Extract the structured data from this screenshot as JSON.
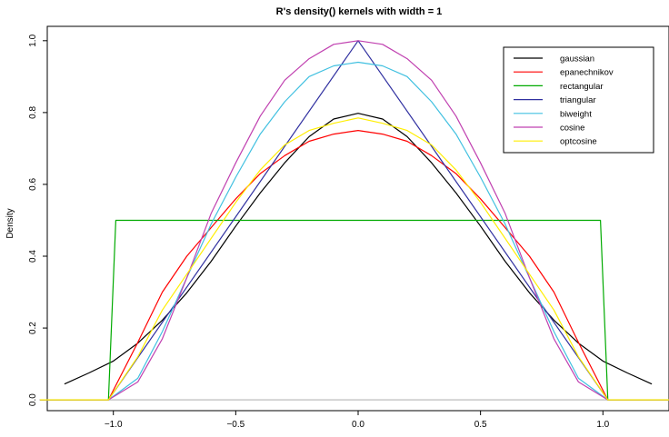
{
  "chart_data": {
    "type": "line",
    "title": "R's density() kernels with width = 1",
    "xlabel": "",
    "ylabel": "Density",
    "xlim": [
      -1.27,
      1.27
    ],
    "ylim": [
      -0.03,
      1.04
    ],
    "x_ticks": [
      {
        "value": -1.0,
        "label": "−1.0"
      },
      {
        "value": -0.5,
        "label": "−0.5"
      },
      {
        "value": 0.0,
        "label": "0.0"
      },
      {
        "value": 0.5,
        "label": "0.5"
      },
      {
        "value": 1.0,
        "label": "1.0"
      }
    ],
    "y_ticks": [
      {
        "value": 0.0,
        "label": "0.0"
      },
      {
        "value": 0.2,
        "label": "0.2"
      },
      {
        "value": 0.4,
        "label": "0.4"
      },
      {
        "value": 0.6,
        "label": "0.6"
      },
      {
        "value": 0.8,
        "label": "0.8"
      },
      {
        "value": 1.0,
        "label": "1.0"
      }
    ],
    "baseline": {
      "y": 0,
      "color": "#c8c8c8"
    },
    "legend_position": "top-right",
    "grid": false,
    "series": [
      {
        "name": "gaussian",
        "color": "#000000",
        "x": [
          -1.2,
          -1.1,
          -1.0,
          -0.9,
          -0.8,
          -0.7,
          -0.6,
          -0.5,
          -0.4,
          -0.3,
          -0.2,
          -0.1,
          0.0,
          0.1,
          0.2,
          0.3,
          0.4,
          0.5,
          0.6,
          0.7,
          0.8,
          0.9,
          1.0,
          1.1,
          1.2
        ],
        "y": [
          0.044,
          0.075,
          0.108,
          0.158,
          0.222,
          0.298,
          0.386,
          0.484,
          0.576,
          0.66,
          0.733,
          0.782,
          0.798,
          0.782,
          0.733,
          0.66,
          0.576,
          0.484,
          0.386,
          0.298,
          0.222,
          0.158,
          0.108,
          0.075,
          0.044
        ]
      },
      {
        "name": "epanechnikov",
        "color": "#ff0000",
        "x": [
          -1.3,
          -1.02,
          -0.9,
          -0.8,
          -0.7,
          -0.6,
          -0.5,
          -0.4,
          -0.3,
          -0.2,
          -0.1,
          0.0,
          0.1,
          0.2,
          0.3,
          0.4,
          0.5,
          0.6,
          0.7,
          0.8,
          0.9,
          1.02,
          1.3
        ],
        "y": [
          0.0,
          0.0,
          0.16,
          0.3,
          0.4,
          0.48,
          0.56,
          0.63,
          0.68,
          0.72,
          0.74,
          0.75,
          0.74,
          0.72,
          0.68,
          0.63,
          0.56,
          0.48,
          0.4,
          0.3,
          0.16,
          0.0,
          0.0
        ]
      },
      {
        "name": "rectangular",
        "color": "#00aa00",
        "x": [
          -1.3,
          -1.02,
          -0.99,
          0.99,
          1.02,
          1.3
        ],
        "y": [
          0.0,
          0.0,
          0.5,
          0.5,
          0.0,
          0.0
        ]
      },
      {
        "name": "triangular",
        "color": "#3030a0",
        "x": [
          -1.3,
          -1.02,
          0.0,
          1.02,
          1.3
        ],
        "y": [
          0.0,
          0.0,
          1.0,
          0.0,
          0.0
        ]
      },
      {
        "name": "biweight",
        "color": "#40c0e0",
        "x": [
          -1.3,
          -1.02,
          -0.9,
          -0.8,
          -0.7,
          -0.6,
          -0.5,
          -0.4,
          -0.3,
          -0.2,
          -0.1,
          0.0,
          0.1,
          0.2,
          0.3,
          0.4,
          0.5,
          0.6,
          0.7,
          0.8,
          0.9,
          1.02,
          1.3
        ],
        "y": [
          0.0,
          0.0,
          0.06,
          0.19,
          0.34,
          0.49,
          0.62,
          0.74,
          0.83,
          0.9,
          0.93,
          0.94,
          0.93,
          0.9,
          0.83,
          0.74,
          0.62,
          0.49,
          0.34,
          0.19,
          0.06,
          0.0,
          0.0
        ]
      },
      {
        "name": "cosine",
        "color": "#c040b0",
        "x": [
          -1.3,
          -1.02,
          -0.9,
          -0.8,
          -0.7,
          -0.6,
          -0.5,
          -0.4,
          -0.3,
          -0.2,
          -0.1,
          0.0,
          0.1,
          0.2,
          0.3,
          0.4,
          0.5,
          0.6,
          0.7,
          0.8,
          0.9,
          1.02,
          1.3
        ],
        "y": [
          0.0,
          0.0,
          0.05,
          0.17,
          0.34,
          0.52,
          0.66,
          0.79,
          0.89,
          0.95,
          0.99,
          1.0,
          0.99,
          0.95,
          0.89,
          0.79,
          0.66,
          0.52,
          0.34,
          0.17,
          0.05,
          0.0,
          0.0
        ]
      },
      {
        "name": "optcosine",
        "color": "#ffee00",
        "x": [
          -1.3,
          -1.02,
          -0.9,
          -0.8,
          -0.7,
          -0.6,
          -0.5,
          -0.4,
          -0.3,
          -0.2,
          -0.1,
          0.0,
          0.1,
          0.2,
          0.3,
          0.4,
          0.5,
          0.6,
          0.7,
          0.8,
          0.9,
          1.02,
          1.3
        ],
        "y": [
          0.0,
          0.0,
          0.12,
          0.25,
          0.35,
          0.45,
          0.55,
          0.64,
          0.71,
          0.75,
          0.77,
          0.785,
          0.77,
          0.75,
          0.71,
          0.64,
          0.55,
          0.45,
          0.35,
          0.25,
          0.12,
          0.0,
          0.0
        ]
      }
    ]
  }
}
